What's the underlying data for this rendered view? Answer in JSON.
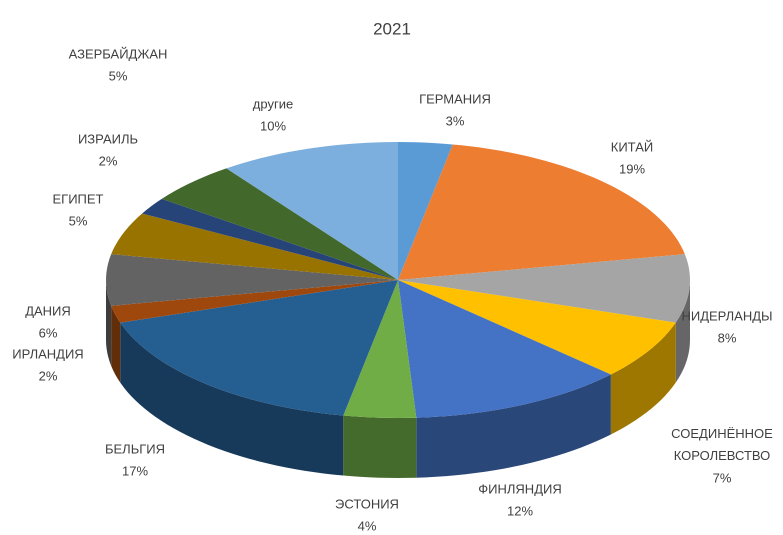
{
  "chart_data": {
    "type": "pie",
    "title": "2021",
    "categories": [
      "ГЕРМАНИЯ",
      "КИТАЙ",
      "НИДЕРЛАНДЫ",
      "СОЕДИНЁННОЕ КОРОЛЕВСТВО",
      "ФИНЛЯНДИЯ",
      "ЭСТОНИЯ",
      "БЕЛЬГИЯ",
      "ИРЛАНДИЯ",
      "ДАНИЯ",
      "ЕГИПЕТ",
      "ИЗРАИЛЬ",
      "АЗЕРБАЙДЖАН",
      "другие"
    ],
    "values": [
      3,
      19,
      8,
      7,
      12,
      4,
      17,
      2,
      6,
      5,
      2,
      5,
      10
    ],
    "value_labels": [
      "3%",
      "19%",
      "8%",
      "7%",
      "12%",
      "4%",
      "17%",
      "2%",
      "6%",
      "5%",
      "2%",
      "5%",
      "10%"
    ],
    "colors": [
      "#5b9bd5",
      "#ed7d31",
      "#a5a5a5",
      "#ffc000",
      "#4472c4",
      "#70ad47",
      "#255e91",
      "#9e480e",
      "#636363",
      "#997300",
      "#264478",
      "#43682b",
      "#7cafdd"
    ]
  }
}
